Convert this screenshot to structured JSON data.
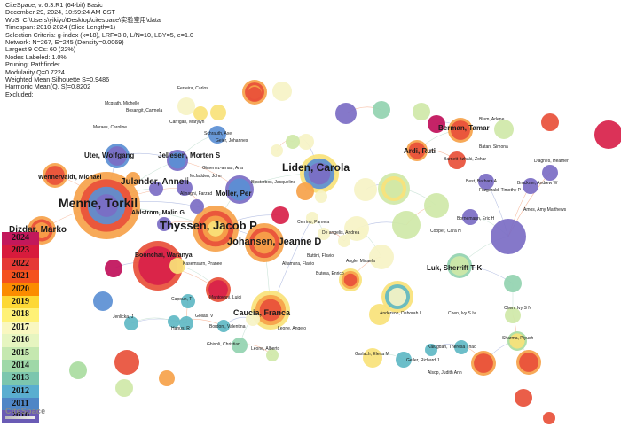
{
  "header": {
    "lines": [
      "CiteSpace, v. 6.3.R1 (64-bit) Basic",
      "December 29, 2024, 10:59:24 AM CST",
      "WoS: C:\\Users\\yikiyo\\Desktop\\citespace\\实验室用\\data",
      "Timespan: 2010-2024 (Slice Length=1)",
      "Selection Criteria: g-index (k=18), LRF=3.0, L/N=10, LBY=5, e=1.0",
      "Network: N=267, E=245 (Density=0.0069)",
      "Largest 9 CCs: 60 (22%)",
      "Nodes Labeled: 1.0%",
      "Pruning: Pathfinder",
      "Modularity Q=0.7224",
      "Weighted Mean Silhouette S=0.9486",
      "Harmonic Mean(Q, S)=0.8202",
      "Excluded:"
    ]
  },
  "legend": {
    "years": [
      "2024",
      "2023",
      "2022",
      "2021",
      "2020",
      "2019",
      "2018",
      "2017",
      "2016",
      "2015",
      "2014",
      "2013",
      "2012",
      "2011",
      "2010"
    ],
    "colors": [
      "#c2185b",
      "#d81b3c",
      "#e53935",
      "#f4511e",
      "#fb8c00",
      "#fdd835",
      "#fff176",
      "#f9f7c0",
      "#e6f5c0",
      "#c5e8b0",
      "#9fd8a8",
      "#7cc6ae",
      "#5aaed0",
      "#4f86c6",
      "#6a5bb5"
    ]
  },
  "logo": "CiteSpace",
  "labels": [
    {
      "text": "Ferreira, Carlos",
      "size": 5
    },
    {
      "text": "Mcgrath, Michelle",
      "size": 5
    },
    {
      "text": "Bosangit, Carmela",
      "size": 5
    },
    {
      "text": "Moraes, Caroline",
      "size": 5
    },
    {
      "text": "Carrigan, Marylyn",
      "size": 5
    },
    {
      "text": "Schrauth, Axel",
      "size": 5
    },
    {
      "text": "Geier, Johannes",
      "size": 5
    },
    {
      "text": "Uter, Wolfgang",
      "size": 8
    },
    {
      "text": "Jellesen, Morten S",
      "size": 8
    },
    {
      "text": "Liden, Carola",
      "size": 12
    },
    {
      "text": "Wennervaldt, Michael",
      "size": 7
    },
    {
      "text": "Julander, Anneli",
      "size": 10
    },
    {
      "text": "Gimenez-arnau, Ana",
      "size": 5
    },
    {
      "text": "Mcfadden, John",
      "size": 5
    },
    {
      "text": "Biesterbos, Jacqueline",
      "size": 5
    },
    {
      "text": "Alinaghi, Farzad",
      "size": 5
    },
    {
      "text": "Moller, Per",
      "size": 8
    },
    {
      "text": "Menne, Torkil",
      "size": 14
    },
    {
      "text": "Ahlstrom, Malin G",
      "size": 7
    },
    {
      "text": "Thyssen, Jacob P",
      "size": 13
    },
    {
      "text": "Johansen, Jeanne D",
      "size": 11
    },
    {
      "text": "Dizdar, Marko",
      "size": 10
    },
    {
      "text": "Boonchai, Waranya",
      "size": 7
    },
    {
      "text": "Kasemsarn, Pranee",
      "size": 5
    },
    {
      "text": "Cerrino, Pamela",
      "size": 5
    },
    {
      "text": "De angelis, Andrea",
      "size": 5
    },
    {
      "text": "Buttini, Flavio",
      "size": 5
    },
    {
      "text": "Altamura, Flavio",
      "size": 5
    },
    {
      "text": "Angle, Micaela",
      "size": 5
    },
    {
      "text": "Butera, Enrico",
      "size": 5
    },
    {
      "text": "Berman, Tamar",
      "size": 8
    },
    {
      "text": "Blum, Arlene",
      "size": 5
    },
    {
      "text": "Ardi, Ruti",
      "size": 8
    },
    {
      "text": "Batan, Simona",
      "size": 5
    },
    {
      "text": "Barnett-Itzhaki, Zohar",
      "size": 5
    },
    {
      "text": "D'agnes, Heather",
      "size": 5
    },
    {
      "text": "Best, Barbara A",
      "size": 5
    },
    {
      "text": "Bruckner, Andrew W",
      "size": 5
    },
    {
      "text": "Fitzgerald, Timothy P",
      "size": 5
    },
    {
      "text": "Bornemann, Eric H",
      "size": 5
    },
    {
      "text": "Amos, Amy Matthews",
      "size": 5
    },
    {
      "text": "Cooper, Cara H",
      "size": 5
    },
    {
      "text": "Luk, Sherriff T K",
      "size": 8
    },
    {
      "text": "Capoun, T",
      "size": 5
    },
    {
      "text": "Mantovani, Luigi",
      "size": 5
    },
    {
      "text": "Jenlicka, J",
      "size": 5
    },
    {
      "text": "Golias, V",
      "size": 5
    },
    {
      "text": "Hanus, R",
      "size": 5
    },
    {
      "text": "Caucia, Franca",
      "size": 9
    },
    {
      "text": "Bordoni, Valentina",
      "size": 5
    },
    {
      "text": "Leone, Angelo",
      "size": 5
    },
    {
      "text": "Ghisoli, Christian",
      "size": 5
    },
    {
      "text": "Leone, Alberto",
      "size": 5
    },
    {
      "text": "Anderson, Deborah L",
      "size": 5
    },
    {
      "text": "Chen, Ivy S Iv",
      "size": 5
    },
    {
      "text": "Chen, Ivy S N",
      "size": 5
    },
    {
      "text": "Kalugdan, Theresa Thao",
      "size": 5
    },
    {
      "text": "Sharma, Piyush",
      "size": 5
    },
    {
      "text": "Garlach, Elena M",
      "size": 5
    },
    {
      "text": "Geller, Richard J",
      "size": 5
    },
    {
      "text": "Alsop, Judith Ann",
      "size": 5
    }
  ]
}
